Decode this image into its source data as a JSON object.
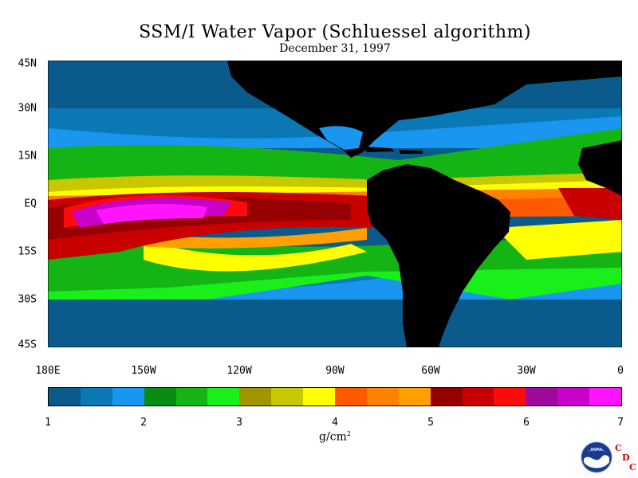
{
  "header": {
    "title": "SSM/I Water Vapor (Schluessel algorithm)",
    "date": "December 31, 1997"
  },
  "map": {
    "lat_labels": [
      "45N",
      "30N",
      "15N",
      "EQ",
      "15S",
      "30S",
      "45S"
    ],
    "lon_labels": [
      "180E",
      "150W",
      "120W",
      "90W",
      "60W",
      "30W",
      "0"
    ],
    "lon_range": [
      -180,
      0
    ],
    "lat_range": [
      -45,
      45
    ],
    "land_color": "#000000"
  },
  "colorbar": {
    "labels": [
      "1",
      "2",
      "3",
      "4",
      "5",
      "6",
      "7"
    ],
    "units_text": "g/cm",
    "units_sup": "2",
    "colors": [
      "#0a5a8c",
      "#0a78b4",
      "#1996f0",
      "#0a8c14",
      "#14b414",
      "#19f019",
      "#a09600",
      "#c8c800",
      "#ffff00",
      "#ff5a00",
      "#ff8200",
      "#ffa000",
      "#960000",
      "#c80000",
      "#ff0a0a",
      "#9b0a9b",
      "#c800c8",
      "#ff14ff"
    ]
  },
  "logo": {
    "org_text": "NOAA",
    "letters": [
      "C",
      "D",
      "C"
    ]
  }
}
